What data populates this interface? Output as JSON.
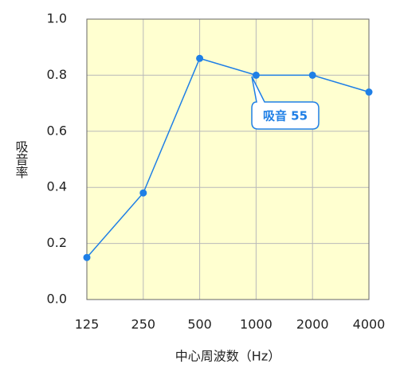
{
  "chart_data": {
    "type": "line",
    "x_label": "中心周波数（Hz）",
    "y_label": "吸音率",
    "categories": [
      "125",
      "250",
      "500",
      "1000",
      "2000",
      "4000"
    ],
    "values": [
      0.15,
      0.38,
      0.86,
      0.8,
      0.8,
      0.74
    ],
    "color": "#1f7fe6",
    "ylim": [
      0,
      1
    ],
    "yticks": [
      {
        "value": 0,
        "label": "0.0"
      },
      0.2,
      0.4,
      0.6,
      0.8,
      {
        "value": 1,
        "label": "1.0"
      }
    ],
    "grid": true,
    "background": "#ffffd0",
    "annotation": "吸音 55"
  }
}
